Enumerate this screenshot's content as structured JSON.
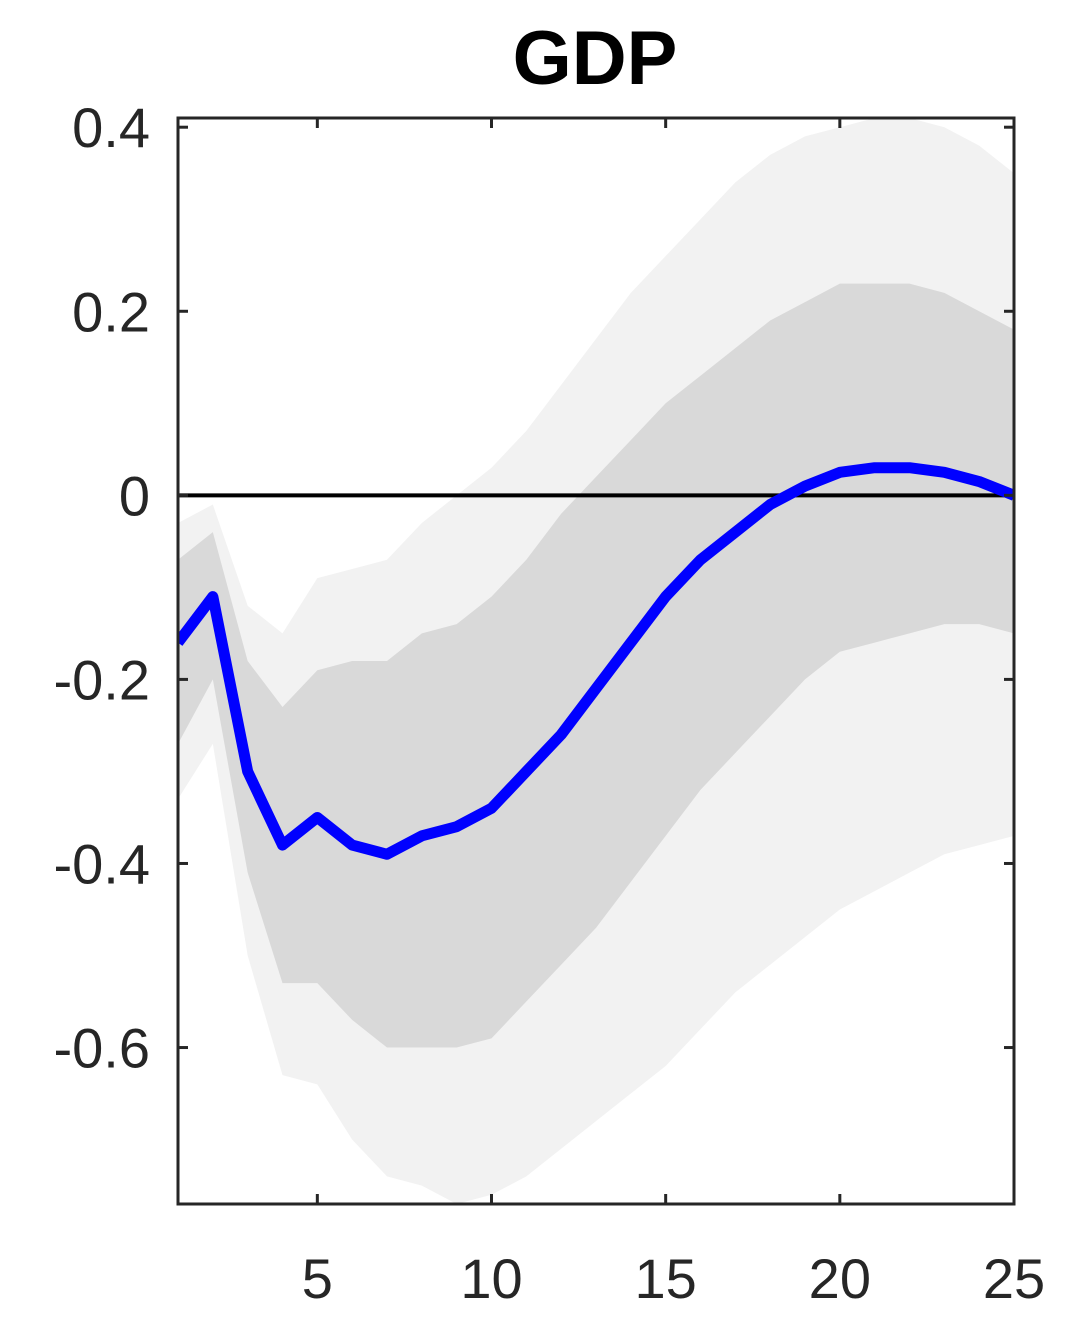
{
  "chart_data": {
    "type": "line",
    "title": "GDP",
    "xlabel": "",
    "ylabel": "",
    "xlim": [
      1,
      25
    ],
    "ylim": [
      -0.77,
      0.41
    ],
    "x_ticks": [
      5,
      10,
      15,
      20,
      25
    ],
    "y_ticks": [
      0.4,
      0.2,
      0,
      -0.2,
      -0.4,
      -0.6
    ],
    "y_tick_labels": [
      "0.4",
      "0.2",
      "0",
      "-0.2",
      "-0.4",
      "-0.6"
    ],
    "grid": false,
    "zero_line": 0,
    "colors": {
      "line": "#0000ff",
      "inner_band": "#d9d9d9",
      "outer_band": "#f2f2f2",
      "zero_line": "#000000",
      "axes": "#262626"
    },
    "x": [
      1,
      2,
      3,
      4,
      5,
      6,
      7,
      8,
      9,
      10,
      11,
      12,
      13,
      14,
      15,
      16,
      17,
      18,
      19,
      20,
      21,
      22,
      23,
      24,
      25
    ],
    "series": [
      {
        "role": "median",
        "values": [
          -0.16,
          -0.11,
          -0.3,
          -0.38,
          -0.35,
          -0.38,
          -0.39,
          -0.37,
          -0.36,
          -0.34,
          -0.3,
          -0.26,
          -0.21,
          -0.16,
          -0.11,
          -0.07,
          -0.04,
          -0.01,
          0.01,
          0.025,
          0.03,
          0.03,
          0.025,
          0.015,
          0.0
        ]
      }
    ],
    "bands": [
      {
        "role": "outer",
        "lower": [
          -0.33,
          -0.27,
          -0.5,
          -0.63,
          -0.64,
          -0.7,
          -0.74,
          -0.75,
          -0.77,
          -0.76,
          -0.74,
          -0.71,
          -0.68,
          -0.65,
          -0.62,
          -0.58,
          -0.54,
          -0.51,
          -0.48,
          -0.45,
          -0.43,
          -0.41,
          -0.39,
          -0.38,
          -0.37
        ],
        "upper": [
          -0.03,
          -0.01,
          -0.12,
          -0.15,
          -0.09,
          -0.08,
          -0.07,
          -0.03,
          0.0,
          0.03,
          0.07,
          0.12,
          0.17,
          0.22,
          0.26,
          0.3,
          0.34,
          0.37,
          0.39,
          0.4,
          0.41,
          0.41,
          0.4,
          0.38,
          0.35
        ]
      },
      {
        "role": "inner",
        "lower": [
          -0.27,
          -0.2,
          -0.41,
          -0.53,
          -0.53,
          -0.57,
          -0.6,
          -0.6,
          -0.6,
          -0.59,
          -0.55,
          -0.51,
          -0.47,
          -0.42,
          -0.37,
          -0.32,
          -0.28,
          -0.24,
          -0.2,
          -0.17,
          -0.16,
          -0.15,
          -0.14,
          -0.14,
          -0.15
        ],
        "upper": [
          -0.07,
          -0.04,
          -0.18,
          -0.23,
          -0.19,
          -0.18,
          -0.18,
          -0.15,
          -0.14,
          -0.11,
          -0.07,
          -0.02,
          0.02,
          0.06,
          0.1,
          0.13,
          0.16,
          0.19,
          0.21,
          0.23,
          0.23,
          0.23,
          0.22,
          0.2,
          0.18
        ]
      }
    ]
  }
}
